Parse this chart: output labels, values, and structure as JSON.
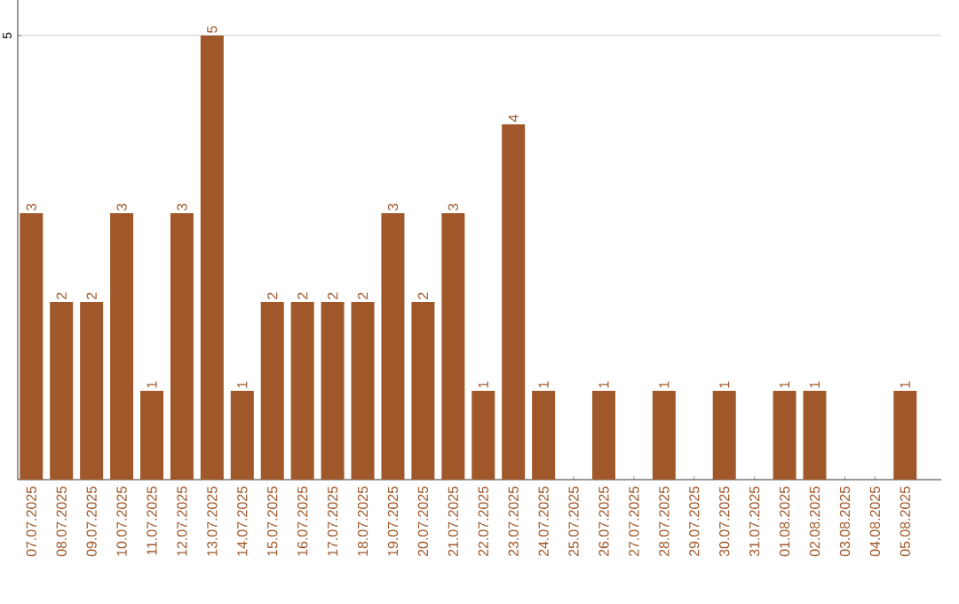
{
  "chart_data": {
    "type": "bar",
    "categories": [
      "07.07.2025",
      "08.07.2025",
      "09.07.2025",
      "10.07.2025",
      "11.07.2025",
      "12.07.2025",
      "13.07.2025",
      "14.07.2025",
      "15.07.2025",
      "16.07.2025",
      "17.07.2025",
      "18.07.2025",
      "19.07.2025",
      "20.07.2025",
      "21.07.2025",
      "22.07.2025",
      "23.07.2025",
      "24.07.2025",
      "25.07.2025",
      "26.07.2025",
      "27.07.2025",
      "28.07.2025",
      "29.07.2025",
      "30.07.2025",
      "31.07.2025",
      "01.08.2025",
      "02.08.2025",
      "03.08.2025",
      "04.08.2025",
      "05.08.2025"
    ],
    "values": [
      3,
      2,
      2,
      3,
      1,
      3,
      5,
      1,
      2,
      2,
      2,
      2,
      3,
      2,
      3,
      1,
      4,
      1,
      0,
      1,
      0,
      1,
      0,
      1,
      0,
      1,
      1,
      0,
      0,
      1
    ],
    "value_labels": [
      "3",
      "2",
      "2",
      "3",
      "1",
      "3",
      "5",
      "1",
      "2",
      "2",
      "2",
      "2",
      "3",
      "2",
      "3",
      "1",
      "4",
      "1",
      null,
      "1",
      null,
      "1",
      null,
      "1",
      null,
      "1",
      "1",
      null,
      null,
      "1"
    ],
    "color": "#a0582a",
    "ylim": [
      0,
      5.4
    ],
    "yticks": [
      5
    ],
    "grid": "y"
  }
}
